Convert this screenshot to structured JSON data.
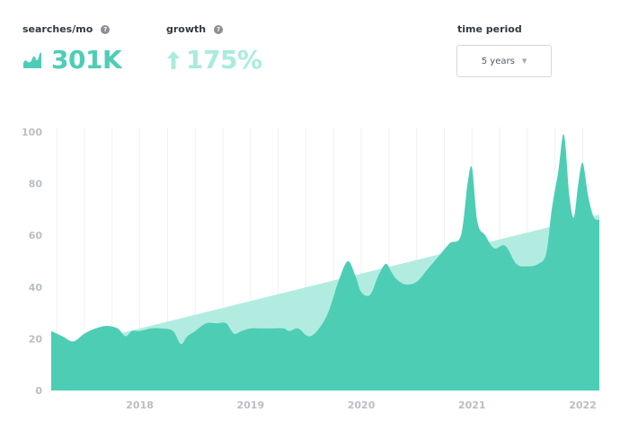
{
  "stats": {
    "searches": {
      "label": "searches/mo",
      "value": "301K",
      "help": "?"
    },
    "growth": {
      "label": "growth",
      "value": "175%",
      "help": "?"
    }
  },
  "time_period": {
    "label": "time period",
    "selected": "5 years",
    "caret": "▼"
  },
  "colors": {
    "accent": "#4ecdb5",
    "trend": "#b2ece0",
    "label": "#333a40",
    "axis_text": "#b9bec3"
  },
  "icons": {
    "searches": "area-chart-icon",
    "growth": "arrow-up-icon",
    "help": "question-icon"
  },
  "chart_data": {
    "type": "area",
    "title": "",
    "xlabel": "",
    "ylabel": "",
    "ylim": [
      0,
      100
    ],
    "xlim": [
      2017.2,
      2022.15
    ],
    "yticks": [
      0,
      20,
      40,
      60,
      80,
      100
    ],
    "xticks": [
      2018,
      2019,
      2020,
      2021,
      2022
    ],
    "grid": "vertical",
    "series": [
      {
        "kind": "area",
        "x": [
          2017.2,
          2017.3,
          2017.4,
          2017.5,
          2017.6,
          2017.7,
          2017.8,
          2017.87,
          2017.93,
          2018.0,
          2018.1,
          2018.2,
          2018.3,
          2018.37,
          2018.43,
          2018.5,
          2018.6,
          2018.7,
          2018.78,
          2018.85,
          2018.92,
          2019.0,
          2019.1,
          2019.2,
          2019.3,
          2019.35,
          2019.43,
          2019.52,
          2019.6,
          2019.7,
          2019.8,
          2019.88,
          2019.95,
          2020.0,
          2020.08,
          2020.15,
          2020.22,
          2020.27,
          2020.32,
          2020.4,
          2020.5,
          2020.6,
          2020.7,
          2020.8,
          2020.9,
          2020.96,
          2021.0,
          2021.05,
          2021.12,
          2021.2,
          2021.3,
          2021.4,
          2021.5,
          2021.6,
          2021.67,
          2021.72,
          2021.78,
          2021.83,
          2021.88,
          2021.92,
          2021.96,
          2022.0,
          2022.05,
          2022.1,
          2022.15
        ],
        "y": [
          23,
          21,
          19,
          22,
          24,
          25,
          24,
          21,
          23,
          23,
          24,
          24,
          23,
          18,
          21,
          23,
          26,
          26,
          26,
          22,
          23,
          24,
          24,
          24,
          24,
          23,
          24,
          21,
          23,
          30,
          43,
          50,
          44,
          38,
          37,
          44,
          49,
          46,
          43,
          41,
          42,
          47,
          52,
          57,
          60,
          80,
          86,
          65,
          60,
          55,
          56,
          49,
          48,
          49,
          53,
          70,
          85,
          99,
          75,
          67,
          80,
          88,
          75,
          67,
          66
        ]
      },
      {
        "kind": "trend",
        "x": [
          2017.2,
          2022.15
        ],
        "y": [
          15.5,
          68
        ]
      }
    ]
  }
}
